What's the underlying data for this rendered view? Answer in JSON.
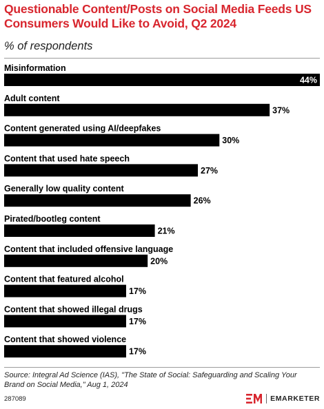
{
  "title": "Questionable Content/Posts on Social Media Feeds US Consumers Would Like to Avoid, Q2 2024",
  "subtitle": "% of respondents",
  "source": "Source: Integral Ad Science (IAS), \"The State of Social: Safeguarding and Scaling Your Brand on Social Media,\" Aug 1, 2024",
  "chart_id": "287089",
  "brand": {
    "name": "EMARKETER",
    "color": "#d8262e"
  },
  "colors": {
    "title": "#d8262e",
    "bar": "#000000"
  },
  "chart_data": {
    "type": "bar",
    "orientation": "horizontal",
    "categories": [
      "Misinformation",
      "Adult content",
      "Content generated using AI/deepfakes",
      "Content that used hate speech",
      "Generally low quality content",
      "Pirated/bootleg content",
      "Content that included offensive language",
      "Content that featured alcohol",
      "Content that showed illegal drugs",
      "Content that showed violence"
    ],
    "values": [
      44,
      37,
      30,
      27,
      26,
      21,
      20,
      17,
      17,
      17
    ],
    "value_labels": [
      "44%",
      "37%",
      "30%",
      "27%",
      "26%",
      "21%",
      "20%",
      "17%",
      "17%",
      "17%"
    ],
    "title": "Questionable Content/Posts on Social Media Feeds US Consumers Would Like to Avoid, Q2 2024",
    "xlabel": "",
    "ylabel": "% of respondents",
    "xlim": [
      0,
      44
    ],
    "grid": false,
    "legend": "none"
  }
}
